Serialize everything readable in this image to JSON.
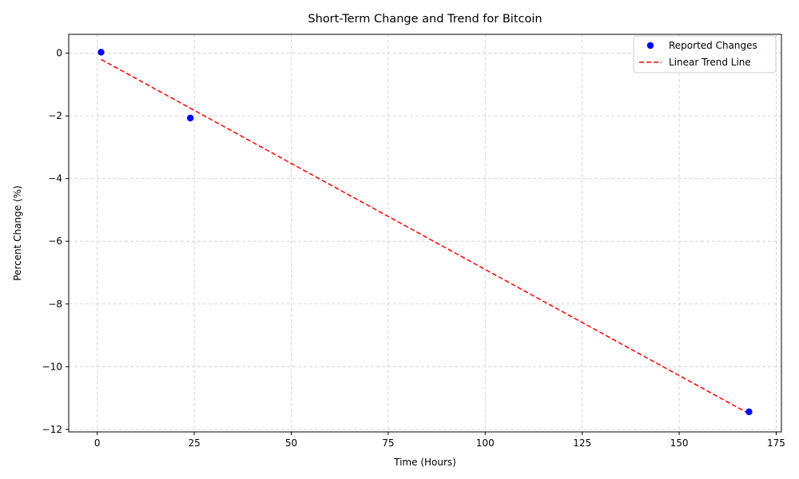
{
  "chart_data": {
    "type": "scatter",
    "title": "Short-Term Change and Trend for Bitcoin",
    "xlabel": "Time (Hours)",
    "ylabel": "Percent Change (%)",
    "xlim": [
      -7.35,
      176.35
    ],
    "ylim": [
      -12.08,
      0.6
    ],
    "xticks": [
      0,
      25,
      50,
      75,
      100,
      125,
      150,
      175
    ],
    "yticks": [
      0,
      -2,
      -4,
      -6,
      -8,
      -10,
      -12
    ],
    "xtick_labels": [
      "0",
      "25",
      "50",
      "75",
      "100",
      "125",
      "150",
      "175"
    ],
    "ytick_labels": [
      "0",
      "−2",
      "−4",
      "−6",
      "−8",
      "−10",
      "−12"
    ],
    "grid": true,
    "legend_position": "top-right",
    "series": [
      {
        "name": "Reported Changes",
        "kind": "points",
        "color": "#0000ff",
        "x": [
          1,
          24,
          168
        ],
        "y": [
          0.03,
          -2.07,
          -11.44
        ]
      },
      {
        "name": "Linear Trend Line",
        "kind": "dashed-line",
        "color": "#ff0000",
        "x": [
          1,
          168
        ],
        "y": [
          -0.2,
          -11.5
        ]
      }
    ]
  }
}
